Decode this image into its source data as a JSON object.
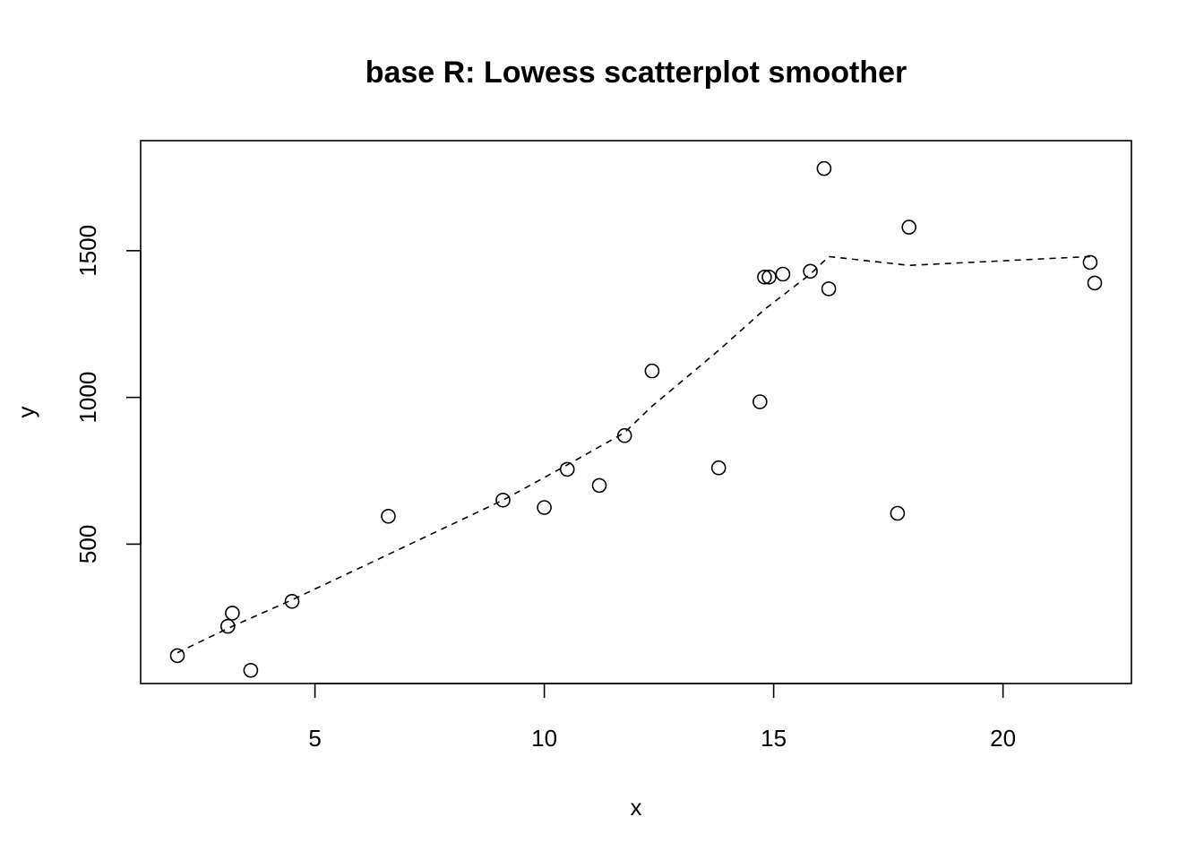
{
  "chart_data": {
    "type": "scatter",
    "title": "base R: Lowess scatterplot smoother",
    "xlabel": "x",
    "ylabel": "y",
    "xlim": [
      1.2,
      22.8
    ],
    "ylim": [
      25,
      1875
    ],
    "x_ticks": [
      5,
      10,
      15,
      20
    ],
    "y_ticks": [
      500,
      1000,
      1500
    ],
    "grid": false,
    "legend": "none",
    "series": [
      {
        "kind": "points",
        "marker": "open-circle",
        "points": [
          [
            2.0,
            120
          ],
          [
            3.1,
            220
          ],
          [
            3.2,
            265
          ],
          [
            3.6,
            70
          ],
          [
            4.5,
            305
          ],
          [
            6.6,
            595
          ],
          [
            9.1,
            650
          ],
          [
            10.0,
            625
          ],
          [
            10.5,
            755
          ],
          [
            11.2,
            700
          ],
          [
            11.75,
            870
          ],
          [
            12.35,
            1090
          ],
          [
            13.8,
            760
          ],
          [
            14.7,
            985
          ],
          [
            14.8,
            1410
          ],
          [
            14.9,
            1410
          ],
          [
            15.2,
            1420
          ],
          [
            15.8,
            1430
          ],
          [
            16.1,
            1780
          ],
          [
            16.2,
            1370
          ],
          [
            17.7,
            605
          ],
          [
            17.95,
            1580
          ],
          [
            21.9,
            1460
          ],
          [
            22.0,
            1390
          ]
        ]
      },
      {
        "kind": "line",
        "style": "dashed",
        "points": [
          [
            2.0,
            130
          ],
          [
            3.2,
            220
          ],
          [
            4.5,
            310
          ],
          [
            6.6,
            465
          ],
          [
            9.1,
            650
          ],
          [
            10.5,
            770
          ],
          [
            11.75,
            880
          ],
          [
            12.35,
            970
          ],
          [
            13.8,
            1160
          ],
          [
            14.8,
            1300
          ],
          [
            15.8,
            1420
          ],
          [
            16.2,
            1480
          ],
          [
            17.95,
            1450
          ],
          [
            21.9,
            1480
          ]
        ]
      }
    ]
  }
}
